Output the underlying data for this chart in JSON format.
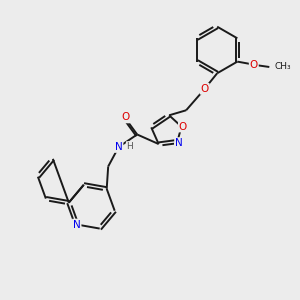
{
  "bg": "#ececec",
  "bond_color": "#1a1a1a",
  "N_color": "#0000ee",
  "O_color": "#dd0000",
  "C_color": "#1a1a1a",
  "H_color": "#555555",
  "lw": 1.4,
  "dbo": 0.055,
  "fs": 7.5,
  "fs_small": 6.5,
  "xlim": [
    0,
    10
  ],
  "ylim": [
    0,
    10
  ]
}
